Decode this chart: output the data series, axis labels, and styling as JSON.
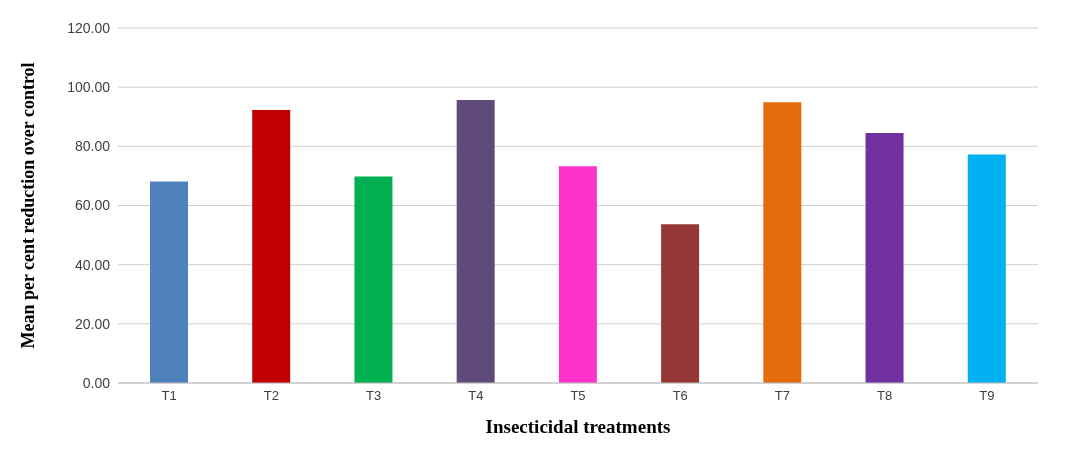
{
  "chart_data": {
    "type": "bar",
    "xlabel": "Insecticidal treatments",
    "ylabel": "Mean per cent reduction over control",
    "categories": [
      "T1",
      "T2",
      "T3",
      "T4",
      "T5",
      "T6",
      "T7",
      "T8",
      "T9"
    ],
    "values": [
      68.1,
      92.3,
      69.8,
      95.7,
      73.3,
      53.7,
      94.9,
      84.5,
      77.2
    ],
    "colors": [
      "#4f81bd",
      "#c00000",
      "#00b050",
      "#604a7b",
      "#ff33cc",
      "#953735",
      "#e46c0a",
      "#7030a0",
      "#00b0f0"
    ],
    "ylim": [
      0,
      120
    ],
    "yticks": [
      {
        "value": 0,
        "label": "0.00"
      },
      {
        "value": 20,
        "label": "20.00"
      },
      {
        "value": 40,
        "label": "40.00"
      },
      {
        "value": 60,
        "label": "60.00"
      },
      {
        "value": 80,
        "label": "80.00"
      },
      {
        "value": 100,
        "label": "100.00"
      },
      {
        "value": 120,
        "label": "120.00"
      }
    ],
    "grid": "y",
    "legend": false
  }
}
